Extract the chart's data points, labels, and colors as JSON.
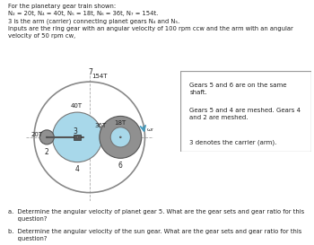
{
  "title_lines": [
    "For the planetary gear train shown:",
    "N₂ = 20t, N₄ = 40t, N₅ = 18t, N₆ = 36t, N₇ = 154t.",
    "3 is the arm (carrier) connecting planet gears N₄ and N₅.",
    "Inputs are the ring gear with an angular velocity of 100 rpm ccw and the arm with an angular",
    "velocity of 50 rpm cw,"
  ],
  "legend_lines": [
    "Gears 5 and 6 are on the same\nshaft.",
    "Gears 5 and 4 are meshed. Gears 4\nand 2 are meshed.",
    "3 denotes the carrier (arm)."
  ],
  "question_a": "a.  Determine the angular velocity of planet gear 5. What are the gear sets and gear ratio for this\n     question?",
  "question_b": "b.  Determine the angular velocity of the sun gear. What are the gear sets and gear ratio for this\n     question?",
  "bg_color": "#ffffff",
  "ring_lw": 1.2,
  "ring_color": "none",
  "ring_ec": "#888888",
  "planet4_color": "#a8d8ea",
  "planet4_ec": "#777777",
  "planet6_color": "#909090",
  "planet6_ec": "#555555",
  "planet5_color": "#a8d8ea",
  "planet5_ec": "#777777",
  "sun2_color": "#909090",
  "sun2_ec": "#555555",
  "arm_color": "#555555",
  "dash_color": "#aaaaaa",
  "arrow_color": "#4499bb",
  "text_color": "#222222"
}
